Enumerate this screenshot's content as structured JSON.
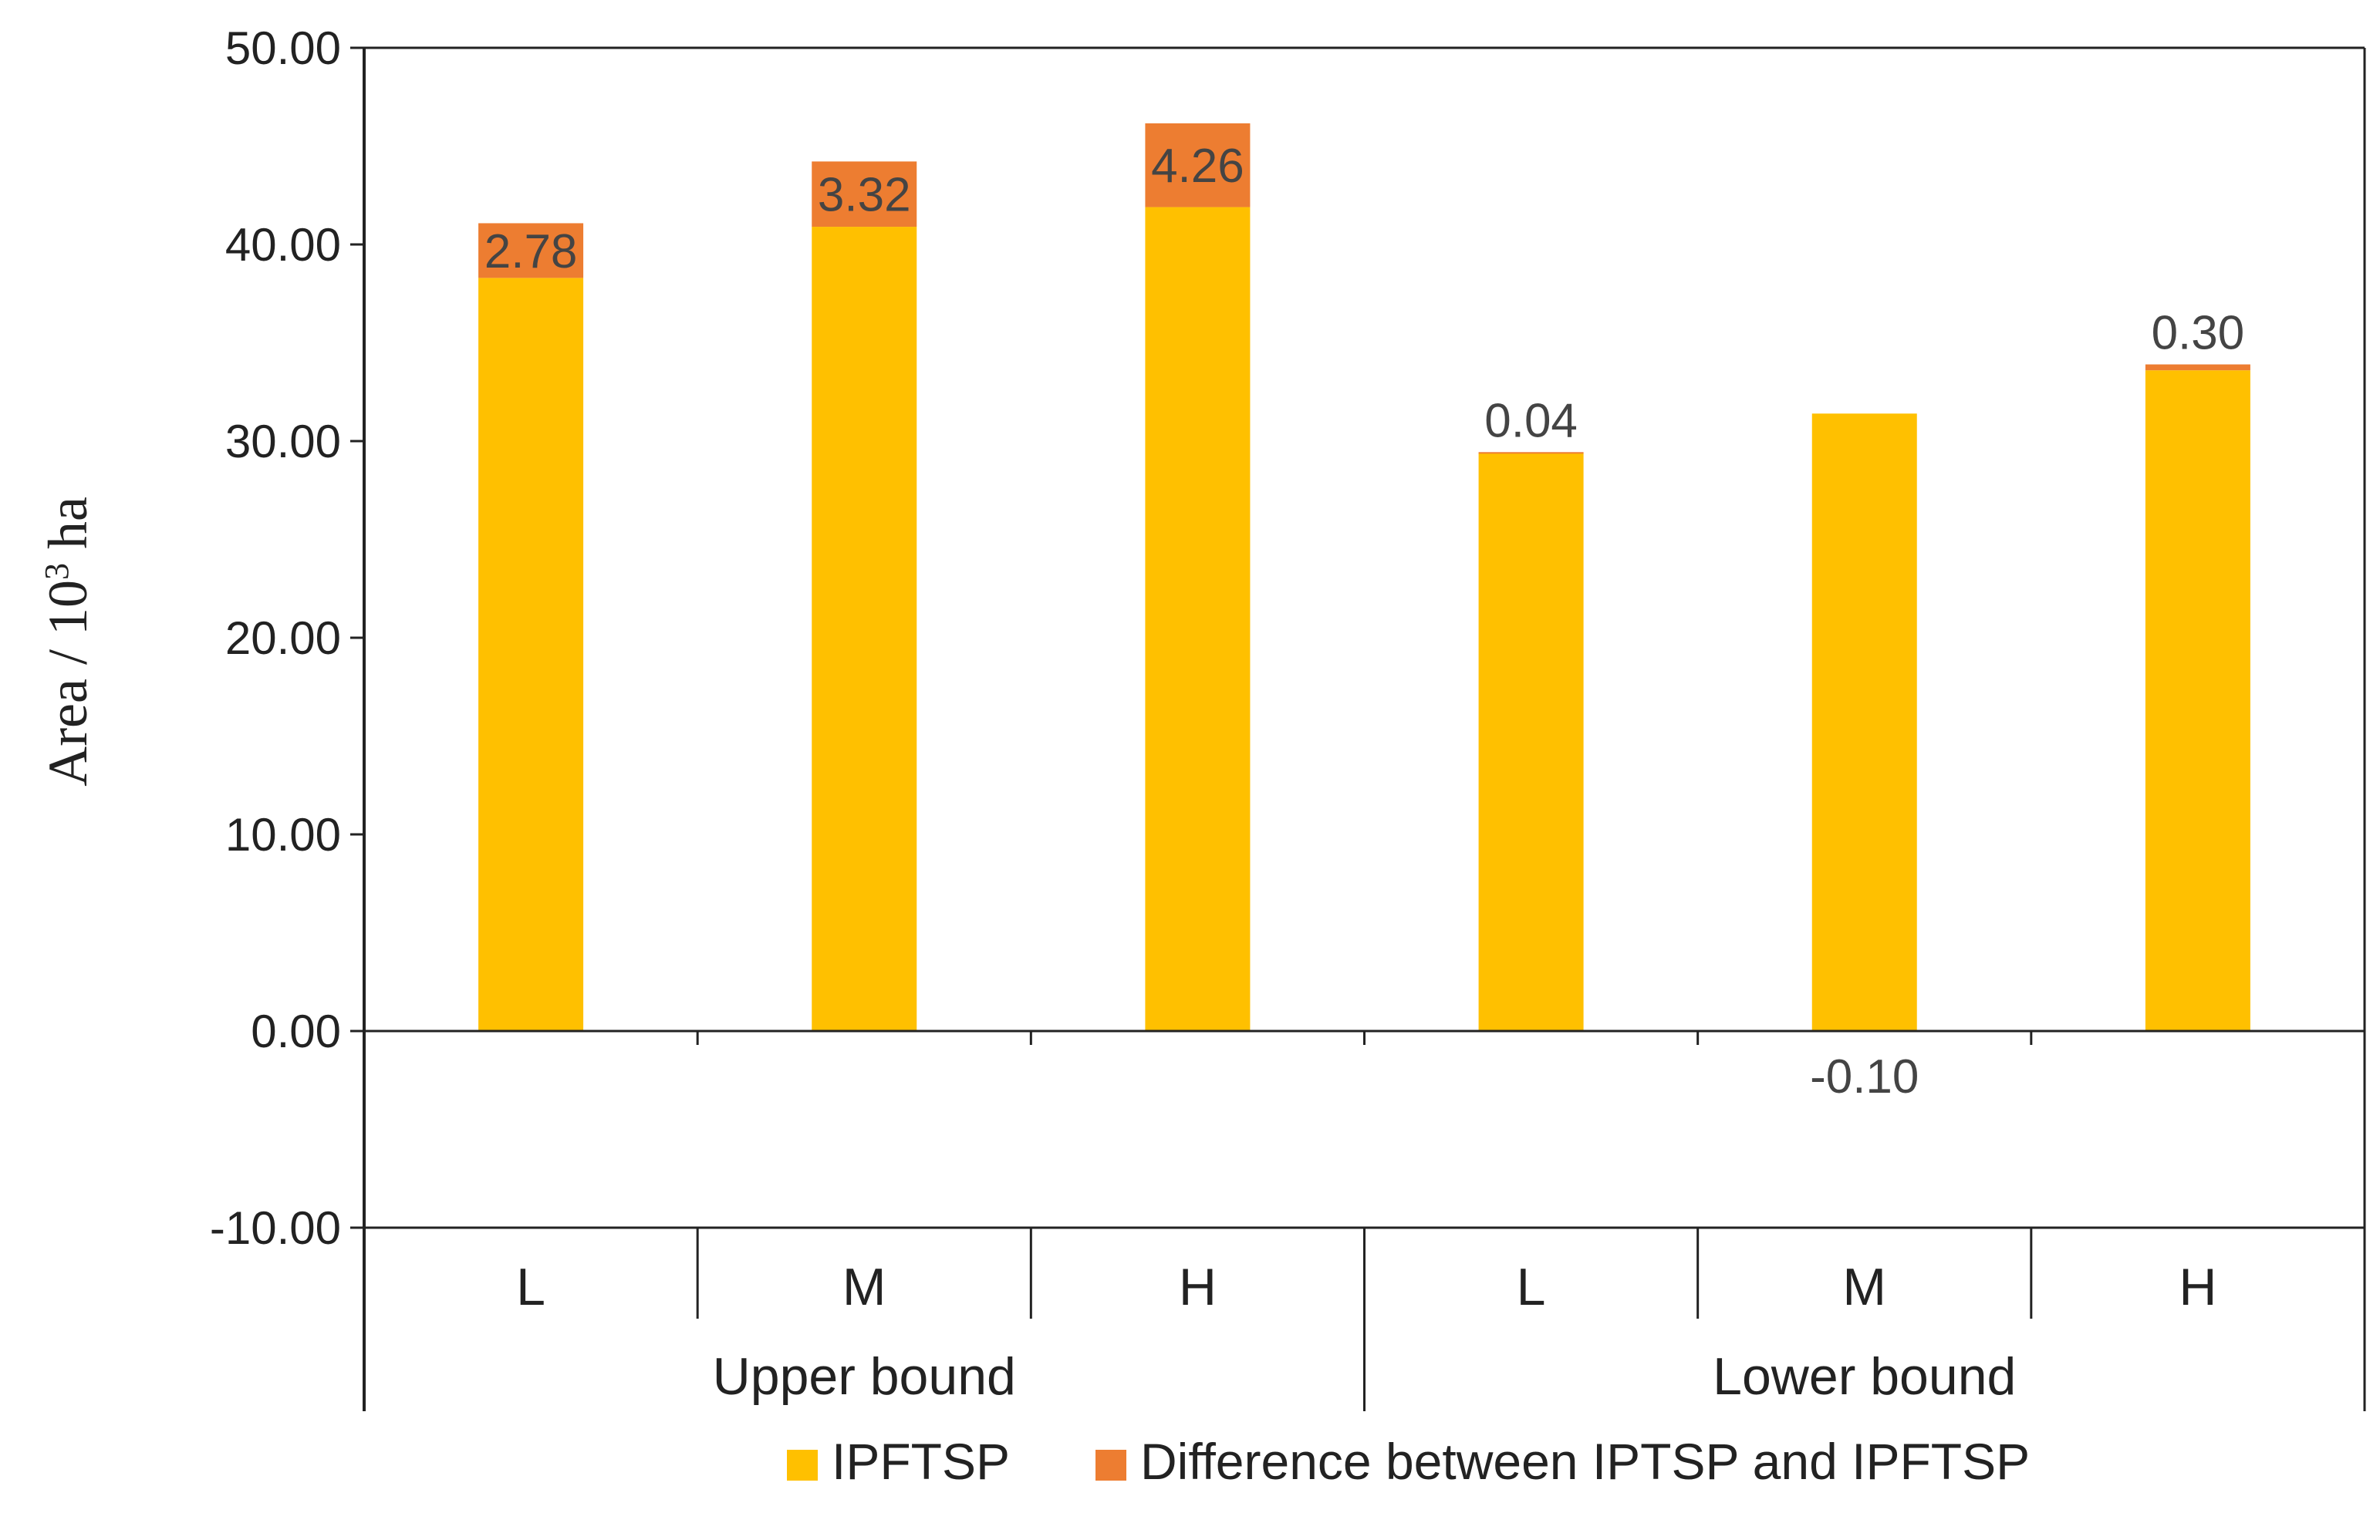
{
  "chart_data": {
    "type": "bar",
    "stacked": true,
    "ylabel_main": "Area / 10",
    "ylabel_sup": "3",
    "ylabel_tail": " ha",
    "ylim": [
      -10,
      50
    ],
    "yticks": [
      "50.00",
      "40.00",
      "30.00",
      "20.00",
      "10.00",
      "0.00",
      "-10.00"
    ],
    "ytick_values": [
      50,
      40,
      30,
      20,
      10,
      0,
      -10
    ],
    "categories": [
      "L",
      "M",
      "H",
      "L",
      "M",
      "H"
    ],
    "groups": [
      {
        "label": "Upper bound",
        "span": 3
      },
      {
        "label": "Lower bound",
        "span": 3
      }
    ],
    "series": [
      {
        "name": "IPFTSP",
        "color": "#FFC000",
        "values": [
          38.3,
          40.9,
          41.9,
          29.4,
          31.4,
          33.6
        ]
      },
      {
        "name": "Difference between IPTSP and IPFTSP",
        "color": "#ED7D31",
        "values": [
          2.78,
          3.32,
          4.26,
          0.04,
          -0.1,
          0.3
        ]
      }
    ],
    "data_labels": [
      "2.78",
      "3.32",
      "4.26",
      "0.04",
      "-0.10",
      "0.30"
    ],
    "legend_position": "bottom",
    "grid": false
  }
}
